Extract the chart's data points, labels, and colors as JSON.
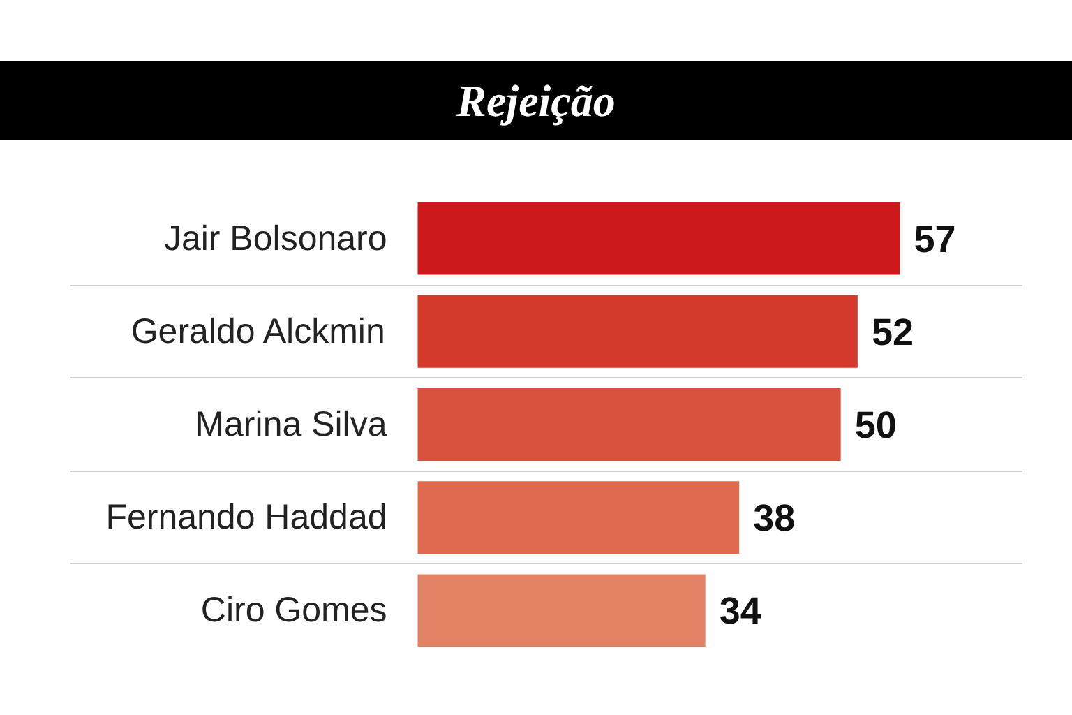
{
  "chart_data": {
    "type": "bar",
    "orientation": "horizontal",
    "title": "Rejeição",
    "categories": [
      "Jair Bolsonaro",
      "Geraldo Alckmin",
      "Marina Silva",
      "Fernando Haddad",
      "Ciro Gomes"
    ],
    "values": [
      57,
      52,
      50,
      38,
      34
    ],
    "colors": [
      "#cc181b",
      "#d33a2c",
      "#d9523d",
      "#df6a4f",
      "#e38164"
    ],
    "data_labels": true,
    "grid": "y"
  }
}
